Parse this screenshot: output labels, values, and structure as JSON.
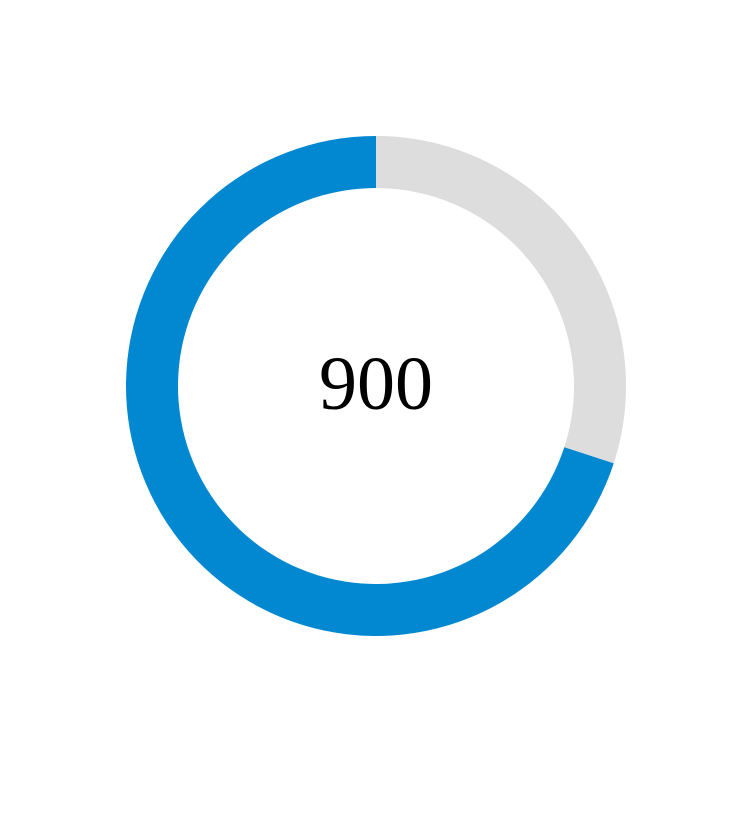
{
  "chart_data": {
    "type": "pie",
    "subtype": "donut-gauge",
    "center_label": "900",
    "segments": [
      {
        "name": "",
        "value": 0.7,
        "color": "#0288D1"
      },
      {
        "name": "",
        "value": 0.3,
        "color": "#DDDDDD"
      }
    ],
    "start_angle": "top",
    "direction": "counterclockwise"
  }
}
